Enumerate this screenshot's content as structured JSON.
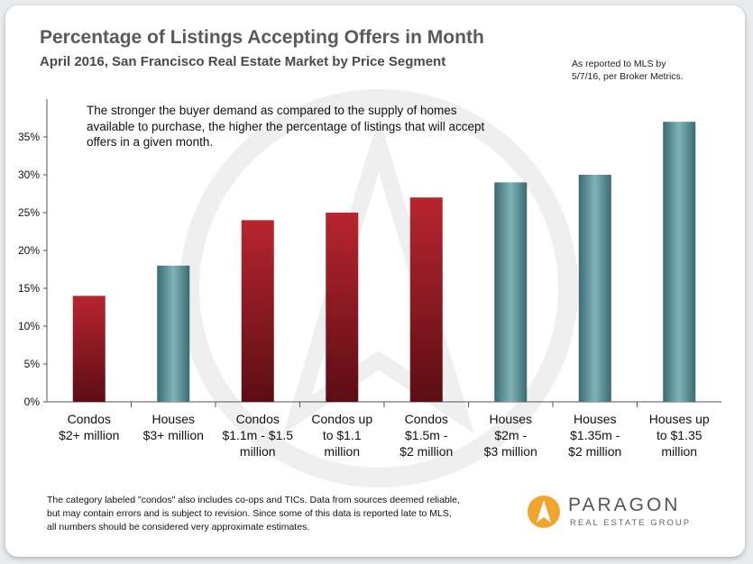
{
  "header": {
    "title": "Percentage of Listings Accepting Offers in Month",
    "subtitle": "April 2016, San Francisco Real Estate Market by Price Segment",
    "source_line1": "As reported to MLS by",
    "source_line2": "5/7/16, per Broker Metrics."
  },
  "note": "The stronger the buyer demand as compared to the supply of homes available to purchase, the higher the percentage of listings that will accept offers in a given month.",
  "footer": {
    "disclaimer_line1": "The category labeled \"condos\" also includes co-ops and TICs. Data from sources deemed reliable,",
    "disclaimer_line2": "but may contain errors and is subject to revision. Since some of this data is reported late to MLS,",
    "disclaimer_line3": "all numbers should be considered very approximate estimates.",
    "brand_name": "PARAGON",
    "brand_sub": "REAL ESTATE GROUP"
  },
  "colors": {
    "condo_top": "#b8252f",
    "condo_bottom": "#5c0d14",
    "house_top": "#7fb3ba",
    "house_bottom": "#3b6a72",
    "logo": "#f2a52e"
  },
  "chart_data": {
    "type": "bar",
    "ylim": [
      0,
      40
    ],
    "yticks": [
      "0%",
      "5%",
      "10%",
      "15%",
      "20%",
      "25%",
      "30%",
      "35%"
    ],
    "grid": false,
    "categories": [
      {
        "lines": [
          "Condos",
          "$2+ million"
        ],
        "value": 14,
        "kind": "condo"
      },
      {
        "lines": [
          "Houses",
          "$3+ million"
        ],
        "value": 18,
        "kind": "house"
      },
      {
        "lines": [
          "Condos",
          "$1.1m - $1.5",
          "million"
        ],
        "value": 24,
        "kind": "condo"
      },
      {
        "lines": [
          "Condos up",
          "to $1.1",
          "million"
        ],
        "value": 25,
        "kind": "condo"
      },
      {
        "lines": [
          "Condos",
          "$1.5m -",
          "$2 million"
        ],
        "value": 27,
        "kind": "condo"
      },
      {
        "lines": [
          "Houses",
          "$2m -",
          "$3 million"
        ],
        "value": 29,
        "kind": "house"
      },
      {
        "lines": [
          "Houses",
          "$1.35m -",
          "$2 million"
        ],
        "value": 30,
        "kind": "house"
      },
      {
        "lines": [
          "Houses up",
          "to $1.35",
          "million"
        ],
        "value": 37,
        "kind": "house"
      }
    ]
  }
}
